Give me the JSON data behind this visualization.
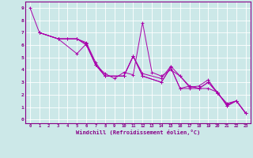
{
  "title": "",
  "xlabel": "Windchill (Refroidissement éolien,°C)",
  "ylabel": "",
  "bg_color": "#cce8e8",
  "grid_color": "#ffffff",
  "line_color": "#aa00aa",
  "xlim": [
    -0.5,
    23.5
  ],
  "ylim": [
    -0.3,
    9.5
  ],
  "xticks": [
    0,
    1,
    2,
    3,
    4,
    5,
    6,
    7,
    8,
    9,
    10,
    11,
    12,
    13,
    14,
    15,
    16,
    17,
    18,
    19,
    20,
    21,
    22,
    23
  ],
  "yticks": [
    0,
    1,
    2,
    3,
    4,
    5,
    6,
    7,
    8,
    9
  ],
  "lines": [
    [
      [
        0,
        9.0
      ],
      [
        1,
        7.0
      ],
      [
        3,
        6.5
      ],
      [
        5,
        6.5
      ],
      [
        6,
        6.0
      ],
      [
        7,
        4.4
      ],
      [
        8,
        3.7
      ],
      [
        9,
        3.3
      ],
      [
        10,
        3.8
      ],
      [
        11,
        3.6
      ],
      [
        12,
        7.8
      ],
      [
        13,
        3.8
      ],
      [
        14,
        3.5
      ],
      [
        15,
        4.0
      ],
      [
        16,
        3.5
      ],
      [
        17,
        2.7
      ],
      [
        18,
        2.5
      ],
      [
        19,
        3.0
      ],
      [
        20,
        2.1
      ],
      [
        21,
        1.3
      ],
      [
        22,
        1.5
      ],
      [
        23,
        0.5
      ]
    ],
    [
      [
        1,
        7.0
      ],
      [
        3,
        6.5
      ],
      [
        5,
        5.3
      ],
      [
        6,
        6.1
      ],
      [
        7,
        4.4
      ],
      [
        8,
        3.5
      ],
      [
        10,
        3.5
      ],
      [
        11,
        5.1
      ],
      [
        12,
        3.7
      ],
      [
        14,
        3.3
      ],
      [
        15,
        4.3
      ],
      [
        16,
        3.5
      ],
      [
        17,
        2.6
      ],
      [
        18,
        2.7
      ],
      [
        19,
        3.2
      ],
      [
        20,
        2.1
      ],
      [
        21,
        1.2
      ],
      [
        22,
        1.5
      ],
      [
        23,
        0.5
      ]
    ],
    [
      [
        1,
        7.0
      ],
      [
        3,
        6.5
      ],
      [
        4,
        6.5
      ],
      [
        5,
        6.5
      ],
      [
        6,
        6.2
      ],
      [
        7,
        4.6
      ],
      [
        8,
        3.5
      ],
      [
        10,
        3.5
      ],
      [
        11,
        5.1
      ],
      [
        12,
        3.5
      ],
      [
        14,
        3.0
      ],
      [
        15,
        4.2
      ],
      [
        16,
        2.5
      ],
      [
        17,
        2.7
      ],
      [
        18,
        2.5
      ],
      [
        19,
        3.0
      ],
      [
        20,
        2.2
      ],
      [
        21,
        1.1
      ],
      [
        22,
        1.5
      ],
      [
        23,
        0.5
      ]
    ],
    [
      [
        1,
        7.0
      ],
      [
        3,
        6.5
      ],
      [
        4,
        6.5
      ],
      [
        5,
        6.5
      ],
      [
        6,
        6.1
      ],
      [
        7,
        4.4
      ],
      [
        8,
        3.5
      ],
      [
        10,
        3.5
      ],
      [
        11,
        5.1
      ],
      [
        12,
        3.5
      ],
      [
        14,
        3.0
      ],
      [
        15,
        4.2
      ],
      [
        16,
        2.5
      ],
      [
        17,
        2.5
      ],
      [
        18,
        2.5
      ],
      [
        19,
        2.5
      ],
      [
        20,
        2.2
      ],
      [
        21,
        1.1
      ],
      [
        22,
        1.5
      ],
      [
        23,
        0.5
      ]
    ]
  ]
}
